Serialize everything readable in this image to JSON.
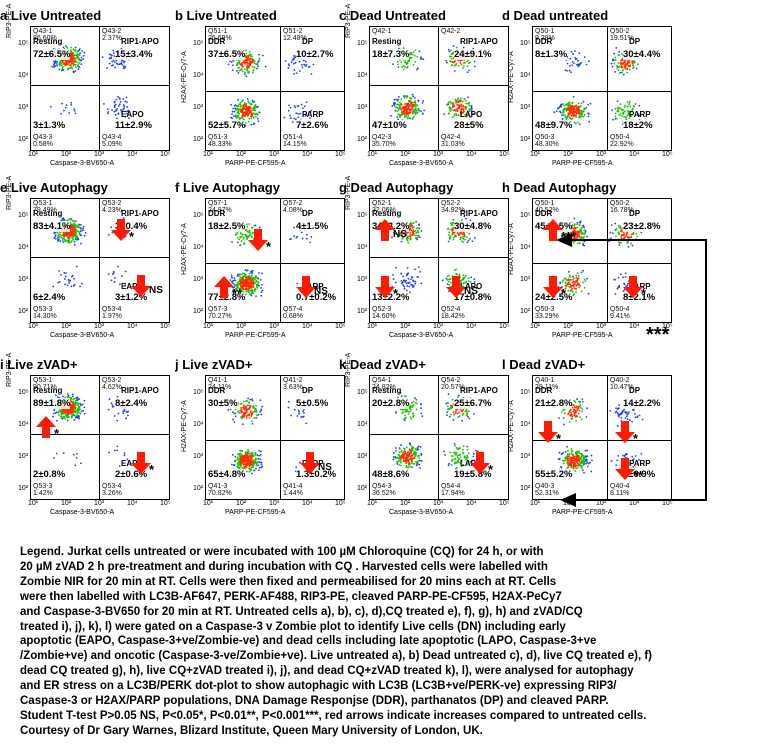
{
  "panels": [
    {
      "title": "a Live Untreated",
      "type": "rip3",
      "ylabel": "RIP3-PE-A",
      "xlabel": "Caspase-3-BV650-A",
      "q": [
        {
          "name": "Q43-1",
          "pct": "86.60%",
          "lbl": "Resting",
          "val": "72±6.5%"
        },
        {
          "name": "Q43-2",
          "pct": "2.37%",
          "lbl": "RIP1-APO",
          "val": "15±3.4%"
        },
        {
          "name": "Q43-3",
          "pct": "0.58%",
          "lbl": "",
          "val": "3±1.3%"
        },
        {
          "name": "Q43-4",
          "pct": "5.09%",
          "lbl": "EAPO",
          "val": "11±2.9%"
        }
      ]
    },
    {
      "title": "b Live Untreated",
      "type": "parp",
      "ylabel": "H2AX-PE-Cy7-A",
      "xlabel": "PARP-PE-CF595-A",
      "q": [
        {
          "name": "Q51-1",
          "pct": "26.69%",
          "lbl": "DDR",
          "val": "37±6.5%"
        },
        {
          "name": "Q51-2",
          "pct": "12.48%",
          "lbl": "DP",
          "val": "10±2.7%"
        },
        {
          "name": "Q51-3",
          "pct": "48.33%",
          "lbl": "",
          "val": "52±5.7%"
        },
        {
          "name": "Q51-4",
          "pct": "14.15%",
          "lbl": "PARP",
          "val": "7±2.6%"
        }
      ]
    },
    {
      "title": "c Dead Untreated",
      "type": "rip3",
      "ylabel": "RIP3-PE-A",
      "xlabel": "Caspase-3-BV650-A",
      "q": [
        {
          "name": "Q42-1",
          "pct": "",
          "lbl": "Resting",
          "val": "18±7.3%"
        },
        {
          "name": "Q42-2",
          "pct": "",
          "lbl": "RIP1-APO",
          "val": "24±9.1%"
        },
        {
          "name": "Q42-3",
          "pct": "35.70%",
          "lbl": "",
          "val": "47±10%"
        },
        {
          "name": "Q42-4",
          "pct": "31.03%",
          "lbl": "LAPO",
          "val": "28±5%"
        }
      ]
    },
    {
      "title": "d Dead untreated",
      "type": "parp",
      "ylabel": "H2AX-PE-Cy7-A",
      "xlabel": "PARP-PE-CF595-A",
      "q": [
        {
          "name": "Q50-1",
          "pct": "9.28%",
          "lbl": "DDR",
          "val": "8±1.3%"
        },
        {
          "name": "Q50-2",
          "pct": "19.51%",
          "lbl": "DP",
          "val": "30±4.4%"
        },
        {
          "name": "Q50-3",
          "pct": "48.30%",
          "lbl": "",
          "val": "48±9.7%"
        },
        {
          "name": "Q50-4",
          "pct": "22.92%",
          "lbl": "PARP",
          "val": "18±2%"
        }
      ]
    },
    {
      "title": "e Live Autophagy",
      "type": "rip3",
      "ylabel": "RIP3-PE-A",
      "xlabel": "Caspase-3-BV650-A",
      "q": [
        {
          "name": "Q53-1",
          "pct": "79.49%",
          "lbl": "Resting",
          "val": "83±4.1%"
        },
        {
          "name": "Q53-2",
          "pct": "4.23%",
          "lbl": "RIP1-APO",
          "val": "3±0.4%"
        },
        {
          "name": "Q53-3",
          "pct": "14.30%",
          "lbl": "",
          "val": "6±2.4%"
        },
        {
          "name": "Q53-4",
          "pct": "1.97%",
          "lbl": "EAPO",
          "val": "3±1.2%"
        }
      ]
    },
    {
      "title": "f Live Autophagy",
      "type": "parp",
      "ylabel": "H2AX-PE-Cy7-A",
      "xlabel": "PARP-PE-CF595-A",
      "q": [
        {
          "name": "Q57-1",
          "pct": "24.97%",
          "lbl": "DDR",
          "val": "18±2.5%"
        },
        {
          "name": "Q57-2",
          "pct": "4.08%",
          "lbl": "DP",
          "val": "4±1.5%"
        },
        {
          "name": "Q57-3",
          "pct": "70.27%",
          "lbl": "",
          "val": "77±2.8%"
        },
        {
          "name": "Q57-4",
          "pct": "0.68%",
          "lbl": "PARP",
          "val": "0.7±0.2%"
        }
      ]
    },
    {
      "title": "g Dead Autophagy",
      "type": "rip3",
      "ylabel": "RIP3-PE-A",
      "xlabel": "Caspase-3-BV650-A",
      "q": [
        {
          "name": "Q52-1",
          "pct": "32.06%",
          "lbl": "Resting",
          "val": "34±3.2%"
        },
        {
          "name": "Q52-2",
          "pct": "34.92%",
          "lbl": "RIP1-APO",
          "val": "30±4.8%"
        },
        {
          "name": "Q52-3",
          "pct": "14.60%",
          "lbl": "",
          "val": "13±2.2%"
        },
        {
          "name": "Q52-4",
          "pct": "18.42%",
          "lbl": "LAPO",
          "val": "17±0.8%"
        }
      ]
    },
    {
      "title": "h Dead Autophagy",
      "type": "parp",
      "ylabel": "H2AX-PE-Cy7-A",
      "xlabel": "PARP-PE-CF595-A",
      "q": [
        {
          "name": "Q50-1",
          "pct": "40.52%",
          "lbl": "DDR",
          "val": "45±1.5%"
        },
        {
          "name": "Q50-2",
          "pct": "16.78%",
          "lbl": "DP",
          "val": "23±2.8%"
        },
        {
          "name": "Q50-3",
          "pct": "33.29%",
          "lbl": "",
          "val": "24±2.5%"
        },
        {
          "name": "Q50-4",
          "pct": "9.41%",
          "lbl": "PARP",
          "val": "8±2.1%"
        }
      ]
    },
    {
      "title": "i Live zVAD+",
      "type": "rip3",
      "ylabel": "RIP3-PE-A",
      "xlabel": "Caspase-3-BV650-A",
      "q": [
        {
          "name": "Q53-1",
          "pct": "90.71%",
          "lbl": "Resting",
          "val": "89±1.8%"
        },
        {
          "name": "Q53-2",
          "pct": "4.62%",
          "lbl": "RIP1-APO",
          "val": "8±2.4%"
        },
        {
          "name": "Q53-3",
          "pct": "1.42%",
          "lbl": "",
          "val": "2±0.8%"
        },
        {
          "name": "Q53-4",
          "pct": "3.26%",
          "lbl": "EAPO",
          "val": "2±0.6%"
        }
      ]
    },
    {
      "title": "j Live zVAD+",
      "type": "parp",
      "ylabel": "H2AX-PE-Cy7-A",
      "xlabel": "PARP-PE-CF595-A",
      "q": [
        {
          "name": "Q41-1",
          "pct": "24.11%",
          "lbl": "DDR",
          "val": "30±5%"
        },
        {
          "name": "Q41-2",
          "pct": "3.63%",
          "lbl": "DP",
          "val": "5±0.5%"
        },
        {
          "name": "Q41-3",
          "pct": "70.82%",
          "lbl": "",
          "val": "65±4.8%"
        },
        {
          "name": "Q41-4",
          "pct": "1.44%",
          "lbl": "PARP",
          "val": "1.3±0.2%"
        }
      ]
    },
    {
      "title": "k Dead zVAD+",
      "type": "rip3",
      "ylabel": "RIP3-PE-A",
      "xlabel": "Caspase-3-BV650-A",
      "q": [
        {
          "name": "Q54-1",
          "pct": "24.82%",
          "lbl": "Resting",
          "val": "20±2.8%"
        },
        {
          "name": "Q54-2",
          "pct": "20.57%",
          "lbl": "RIP1-APO",
          "val": "25±6.7%"
        },
        {
          "name": "Q54-3",
          "pct": "36.52%",
          "lbl": "",
          "val": "48±8.6%"
        },
        {
          "name": "Q54-4",
          "pct": "17.94%",
          "lbl": "LAPO",
          "val": "19±5.8%"
        }
      ]
    },
    {
      "title": "l Dead zVAD+",
      "type": "parp",
      "ylabel": "H2AX-PE-Cy7-A",
      "xlabel": "PARP-PE-CF595-A",
      "q": [
        {
          "name": "Q40-1",
          "pct": "29.11%",
          "lbl": "DDR",
          "val": "21±2.8%"
        },
        {
          "name": "Q40-2",
          "pct": "10.47%",
          "lbl": "DP",
          "val": "14±2.2%"
        },
        {
          "name": "Q40-3",
          "pct": "52.31%",
          "lbl": "",
          "val": "55±5.2%"
        },
        {
          "name": "Q40-4",
          "pct": "8.11%",
          "lbl": "PARP",
          "val": "8±0.9%"
        }
      ]
    }
  ],
  "axis_ticks": [
    "10¹",
    "10²",
    "10³",
    "10⁴",
    "10⁵"
  ],
  "significance": {
    "ns": "NS",
    "p05": "*",
    "p01": "**",
    "p001": "***"
  },
  "legend": [
    "Legend. Jurkat cells untreated or were incubated with 100 µM Chloroquine (CQ) for 24 h, or with",
    "20 µM zVAD 2 h pre-treatment and during incubation with CQ . Harvested cells were labelled with",
    "Zombie NIR for 20 min at RT. Cells were then fixed and permeabilised for 20 mins each at RT. Cells",
    "were then labelled with LC3B-AF647, PERK-AF488, RIP3-PE, cleaved PARP-PE-CF595, H2AX-PeCy7",
    "and Caspase-3-BV650 for 20 min at RT. Untreated cells a), b), c), d),CQ treated e), f), g), h) and zVAD/CQ",
    "treated i), j), k), l) were gated on a Caspase-3 v Zombie plot to identify Live cells (DN) including early",
    "apoptotic (EAPO, Caspase-3+ve/Zombie-ve) and dead cells including late apoptotic (LAPO, Caspase-3+ve",
    "/Zombie+ve) and oncotic (Caspase-3-ve/Zombie+ve). Live untreated a), b) Dead untreated c), d), live CQ treated e), f)",
    "dead CQ treated g), h), live CQ+zVAD treated i), j), and dead CQ+zVAD treated k), l), were analysed for autophagy",
    "and ER stress on a LC3B/PERK dot-plot to show autophagic with LC3B (LC3B+ve/PERK-ve) expressing RIP3/",
    "Caspase-3 or H2AX/PARP populations, DNA Damage Responjse (DDR), parthanatos (DP) and cleaved PARP.",
    "Student T-test P>0.05 NS, P<0.05*, P<0.01**, P<0.001***, red arrows indicate increases compared to untreated cells.",
    "Courtesy of Dr Gary Warnes, Blizard Institute, Queen Mary University of London, UK."
  ],
  "colors": {
    "arrow": "#ff1a00",
    "dot_low": "#1f3cff",
    "dot_high": "#ff3000"
  },
  "chart_data": [
    {
      "type": "scatter",
      "title": "a Live Untreated",
      "quadrants": [
        72,
        15,
        3,
        11
      ]
    },
    {
      "type": "scatter",
      "title": "b Live Untreated",
      "quadrants": [
        37,
        10,
        52,
        7
      ]
    },
    {
      "type": "scatter",
      "title": "c Dead Untreated",
      "quadrants": [
        18,
        24,
        47,
        28
      ]
    },
    {
      "type": "scatter",
      "title": "d Dead untreated",
      "quadrants": [
        8,
        30,
        48,
        18
      ]
    },
    {
      "type": "scatter",
      "title": "e Live Autophagy",
      "quadrants": [
        83,
        3,
        6,
        3
      ]
    },
    {
      "type": "scatter",
      "title": "f Live Autophagy",
      "quadrants": [
        18,
        4,
        77,
        0.7
      ]
    },
    {
      "type": "scatter",
      "title": "g Dead Autophagy",
      "quadrants": [
        34,
        30,
        13,
        17
      ]
    },
    {
      "type": "scatter",
      "title": "h Dead Autophagy",
      "quadrants": [
        45,
        23,
        24,
        8
      ]
    },
    {
      "type": "scatter",
      "title": "i Live zVAD+",
      "quadrants": [
        89,
        8,
        2,
        2
      ]
    },
    {
      "type": "scatter",
      "title": "j Live zVAD+",
      "quadrants": [
        30,
        5,
        65,
        1.3
      ]
    },
    {
      "type": "scatter",
      "title": "k Dead zVAD+",
      "quadrants": [
        20,
        25,
        48,
        19
      ]
    },
    {
      "type": "scatter",
      "title": "l Dead zVAD+",
      "quadrants": [
        21,
        14,
        55,
        8
      ]
    }
  ]
}
